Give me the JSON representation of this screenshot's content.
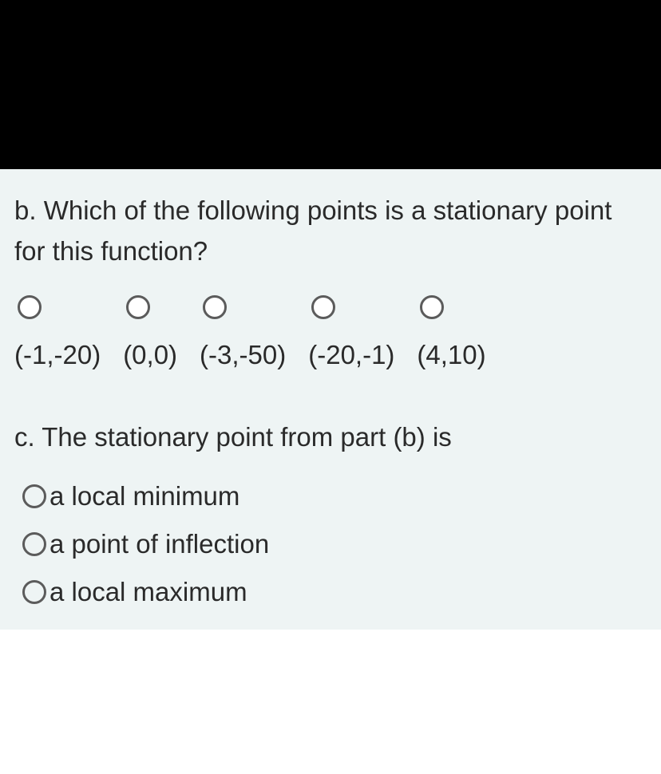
{
  "colors": {
    "top_bar": "#000000",
    "panel_bg": "#eef4f4",
    "text": "#2a2a2a",
    "radio_border": "#5b5b5b"
  },
  "question_b": {
    "prompt": "b. Which of the following points is a stationary point for this function?",
    "options": [
      {
        "label": "(-1,-20)"
      },
      {
        "label": "(0,0)"
      },
      {
        "label": "(-3,-50)"
      },
      {
        "label": "(-20,-1)"
      },
      {
        "label": "(4,10)"
      }
    ]
  },
  "question_c": {
    "prompt": "c. The stationary point from part (b) is",
    "options": [
      {
        "label": "a local minimum"
      },
      {
        "label": "a point of inflection"
      },
      {
        "label": "a local maximum"
      }
    ]
  }
}
